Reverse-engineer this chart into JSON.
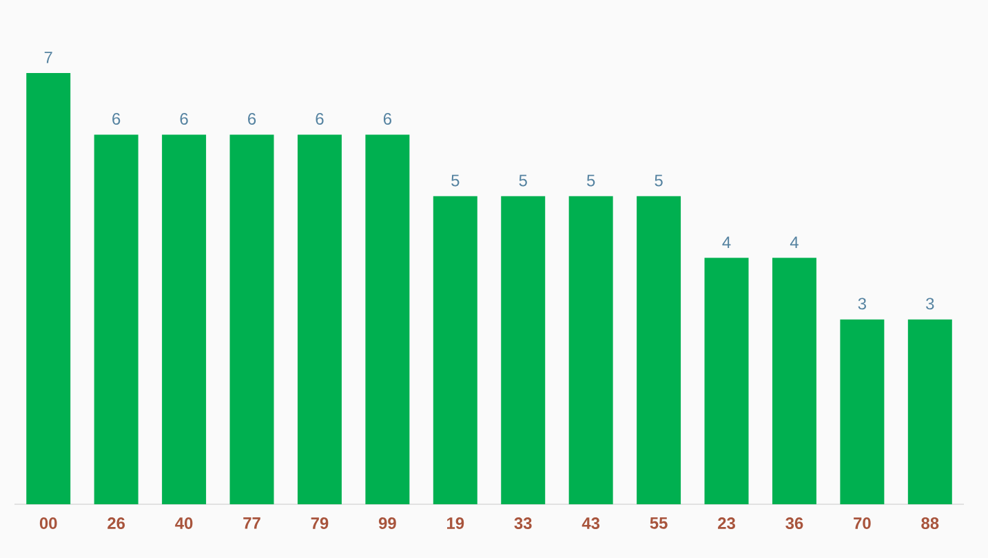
{
  "chart_data": {
    "type": "bar",
    "categories": [
      "00",
      "26",
      "40",
      "77",
      "79",
      "99",
      "19",
      "33",
      "43",
      "55",
      "23",
      "36",
      "70",
      "88"
    ],
    "values": [
      7,
      6,
      6,
      6,
      6,
      6,
      5,
      5,
      5,
      5,
      4,
      4,
      3,
      3
    ],
    "color": "#00b050",
    "data_labels": true
  }
}
